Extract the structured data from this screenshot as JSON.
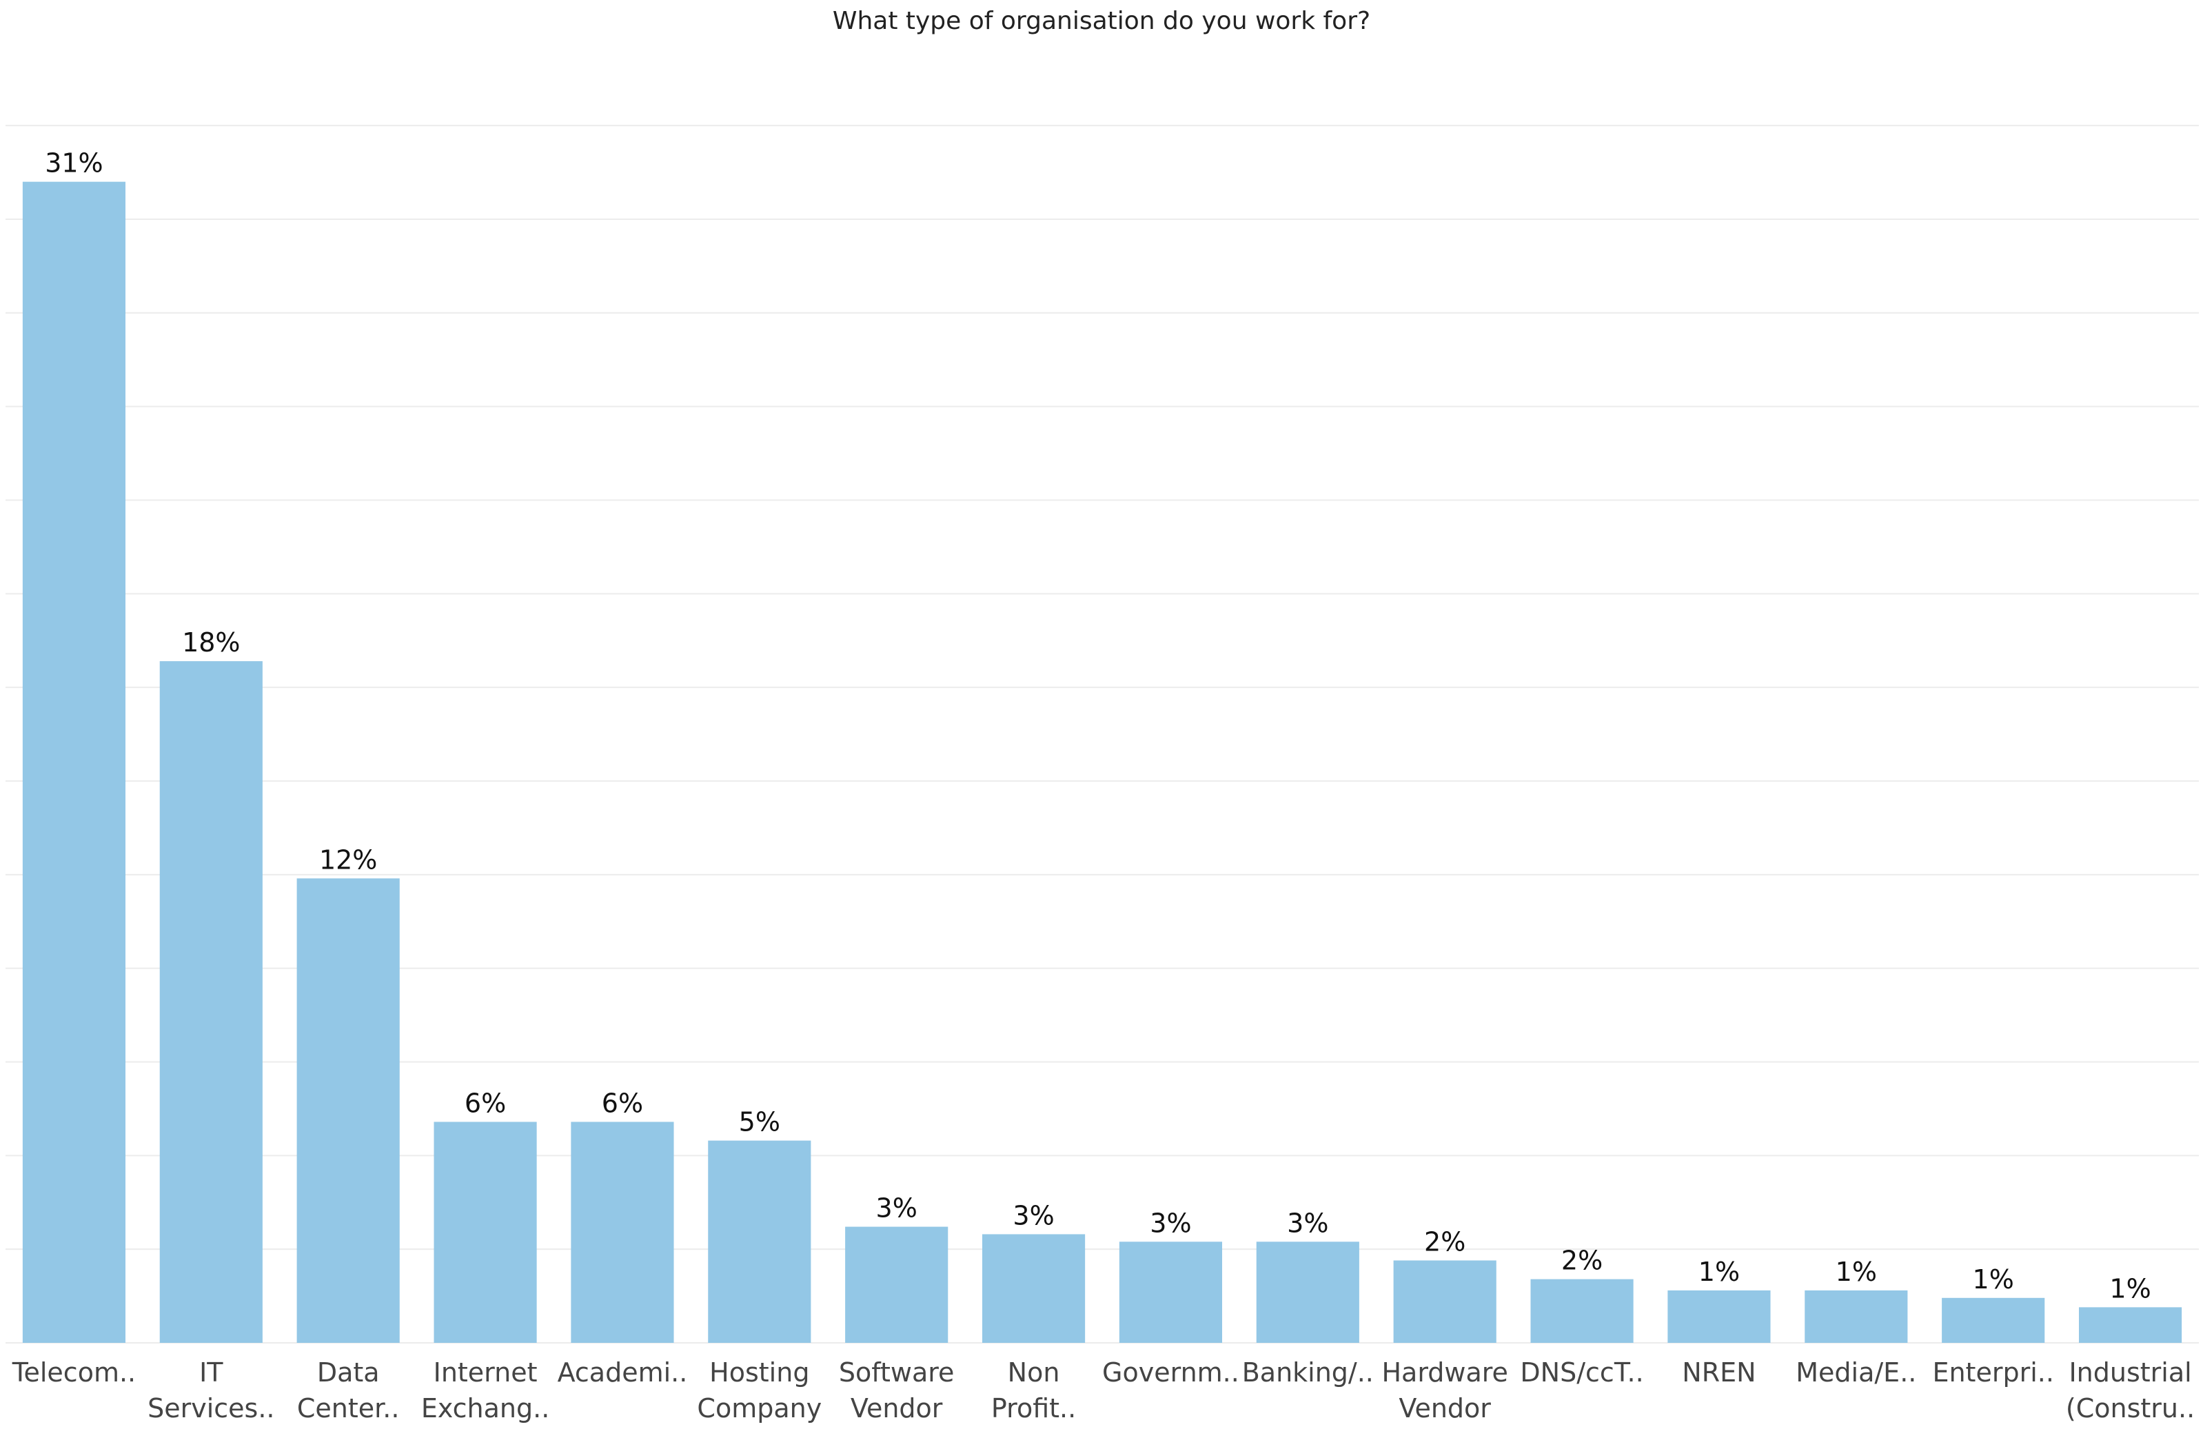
{
  "chart_data": {
    "type": "bar",
    "title": "What type of organisation do you work for?",
    "xlabel": "",
    "ylabel": "",
    "ylim": [
      0,
      33
    ],
    "grid": true,
    "categories": [
      [
        "Telecom.."
      ],
      [
        "IT",
        "Services.."
      ],
      [
        "Data",
        "Center.."
      ],
      [
        "Internet",
        "Exchang.."
      ],
      [
        "Academi.."
      ],
      [
        "Hosting",
        "Company"
      ],
      [
        "Software",
        "Vendor"
      ],
      [
        "Non",
        "Profit.."
      ],
      [
        "Governm.."
      ],
      [
        "Banking/.."
      ],
      [
        "Hardware",
        "Vendor"
      ],
      [
        "DNS/ccT.."
      ],
      [
        "NREN"
      ],
      [
        "Media/E.."
      ],
      [
        "Enterpri.."
      ],
      [
        "Industrial",
        "(Constru.."
      ]
    ],
    "values": [
      31.0,
      18.2,
      12.4,
      5.9,
      5.9,
      5.4,
      3.1,
      2.9,
      2.7,
      2.7,
      2.2,
      1.7,
      1.4,
      1.4,
      1.2,
      0.95
    ],
    "data_labels": [
      "31%",
      "18%",
      "12%",
      "6%",
      "6%",
      "5%",
      "3%",
      "3%",
      "3%",
      "3%",
      "2%",
      "2%",
      "1%",
      "1%",
      "1%",
      "1%"
    ],
    "colors": {
      "bar": "#93c7e6",
      "grid": "#ececec"
    }
  }
}
